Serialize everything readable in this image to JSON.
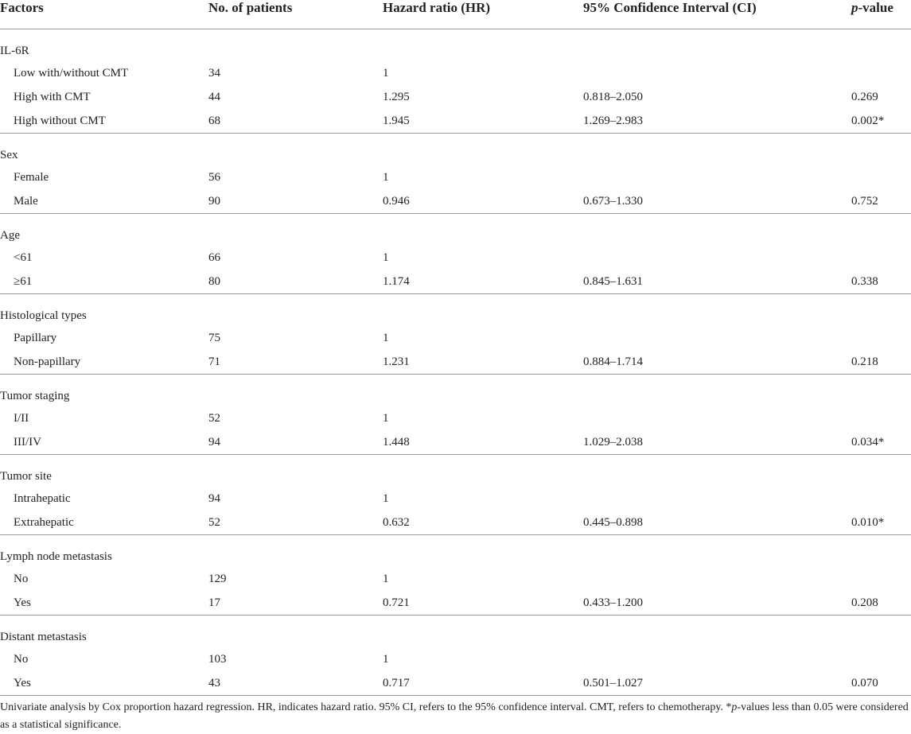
{
  "header": [
    "Factors",
    "No. of patients",
    "Hazard ratio (HR)",
    "95% Confidence Interval (CI)"
  ],
  "header_p_value": {
    "italic": "p",
    "text": "-value"
  },
  "groups": [
    {
      "name": "IL-6R",
      "rows": [
        [
          "Low with/without CMT",
          "34",
          "1"
        ],
        [
          "High with CMT",
          "44",
          "1.295",
          "0.818–2.050",
          "0.269"
        ],
        [
          "High without CMT",
          "68",
          "1.945",
          "1.269–2.983",
          "0.002*"
        ]
      ]
    },
    {
      "name": "Sex",
      "rows": [
        [
          "Female",
          "56",
          "1"
        ],
        [
          "Male",
          "90",
          "0.946",
          "0.673–1.330",
          "0.752"
        ]
      ]
    },
    {
      "name": "Age",
      "rows": [
        [
          "<61",
          "66",
          "1"
        ],
        [
          "≥61",
          "80",
          "1.174",
          "0.845–1.631",
          "0.338"
        ]
      ]
    },
    {
      "name": "Histological types",
      "rows": [
        [
          "Papillary",
          "75",
          "1"
        ],
        [
          "Non-papillary",
          "71",
          "1.231",
          "0.884–1.714",
          "0.218"
        ]
      ]
    },
    {
      "name": "Tumor staging",
      "rows": [
        [
          "I/II",
          "52",
          "1"
        ],
        [
          "III/IV",
          "94",
          "1.448",
          "1.029–2.038",
          "0.034*"
        ]
      ]
    },
    {
      "name": "Tumor site",
      "rows": [
        [
          "Intrahepatic",
          "94",
          "1"
        ],
        [
          "Extrahepatic",
          "52",
          "0.632",
          "0.445–0.898",
          "0.010*"
        ]
      ]
    },
    {
      "name": "Lymph node metastasis",
      "rows": [
        [
          "No",
          "129",
          "1"
        ],
        [
          "Yes",
          "17",
          "0.721",
          "0.433–1.200",
          "0.208"
        ]
      ]
    },
    {
      "name": "Distant metastasis",
      "rows": [
        [
          "No",
          "103",
          "1"
        ],
        [
          "Yes",
          "43",
          "0.717",
          "0.501–1.027",
          "0.070"
        ]
      ]
    }
  ],
  "footnote": {
    "text": "Univariate analysis by Cox proportion hazard regression. HR, indicates hazard ratio. 95% CI, refers to the 95% confidence interval. CMT, refers to chemotherapy. *",
    "italic": "p",
    "rest": "-values less than 0.05 were considered as a statistical significance."
  }
}
